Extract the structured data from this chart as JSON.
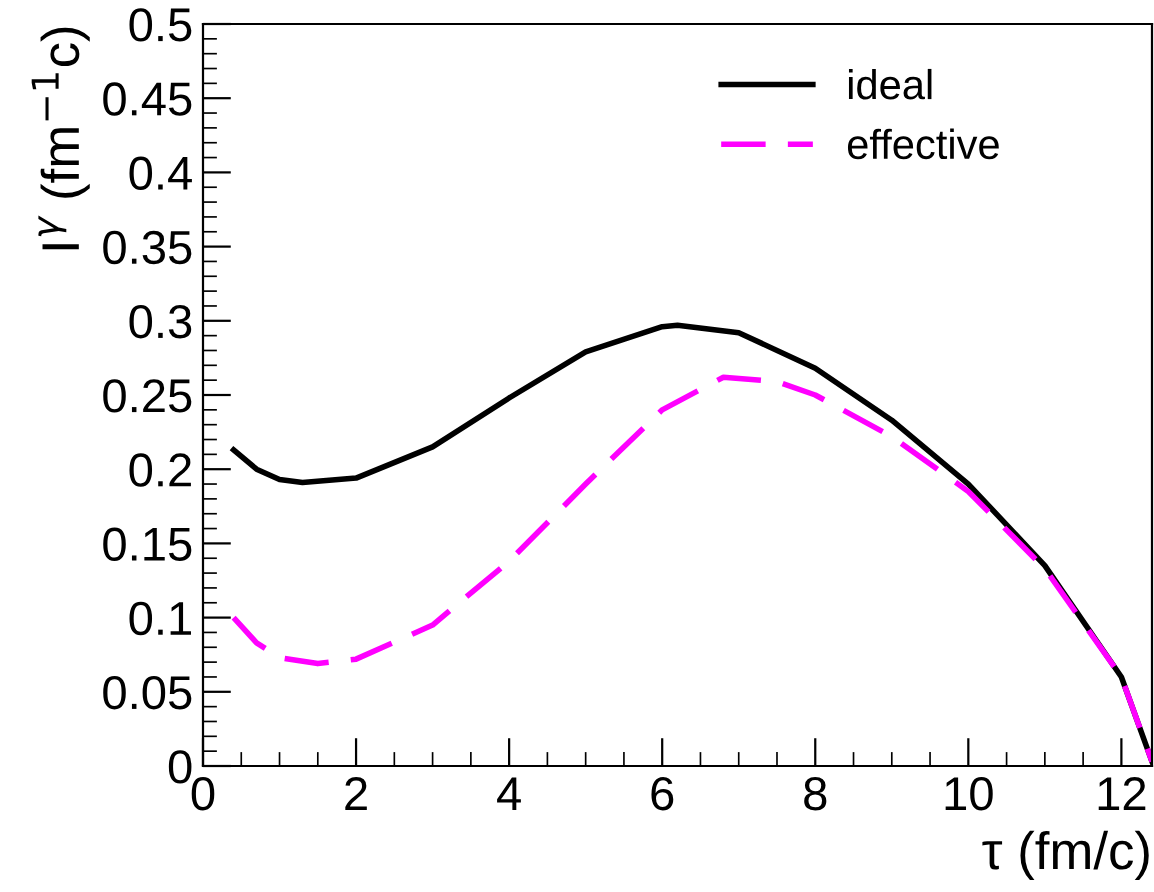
{
  "chart_data": {
    "type": "line",
    "xlabel": "τ (fm/c)",
    "ylabel": "I$^{γ}$ (fm$^{−1}$c)",
    "xlim": [
      0,
      12.4
    ],
    "ylim": [
      0,
      0.5
    ],
    "xticks": [
      0,
      2,
      4,
      6,
      8,
      10,
      12
    ],
    "yticks": [
      0,
      0.05,
      0.1,
      0.15,
      0.2,
      0.25,
      0.3,
      0.35,
      0.4,
      0.45,
      0.5
    ],
    "grid": false,
    "legend": "top right",
    "marker": "none",
    "series": [
      {
        "name": "ideal",
        "color": "#000000",
        "line_style": "solid",
        "x": [
          0.4,
          0.7,
          1.0,
          1.3,
          2,
          3,
          4,
          5,
          6,
          6.2,
          7,
          8,
          9,
          10,
          11,
          12,
          12.4
        ],
        "values": [
          0.213,
          0.2,
          0.193,
          0.191,
          0.194,
          0.215,
          0.248,
          0.279,
          0.296,
          0.297,
          0.292,
          0.268,
          0.233,
          0.19,
          0.135,
          0.06,
          0.003
        ]
      },
      {
        "name": "effective",
        "color": "#ff00ff",
        "line_style": "dashed",
        "x": [
          0.4,
          0.7,
          1.0,
          1.5,
          2,
          3,
          4,
          5,
          6,
          6.8,
          7.5,
          8,
          9,
          10,
          11,
          12,
          12.4
        ],
        "values": [
          0.1,
          0.083,
          0.073,
          0.069,
          0.072,
          0.095,
          0.138,
          0.19,
          0.24,
          0.262,
          0.259,
          0.25,
          0.222,
          0.185,
          0.133,
          0.06,
          0.003
        ]
      }
    ]
  }
}
